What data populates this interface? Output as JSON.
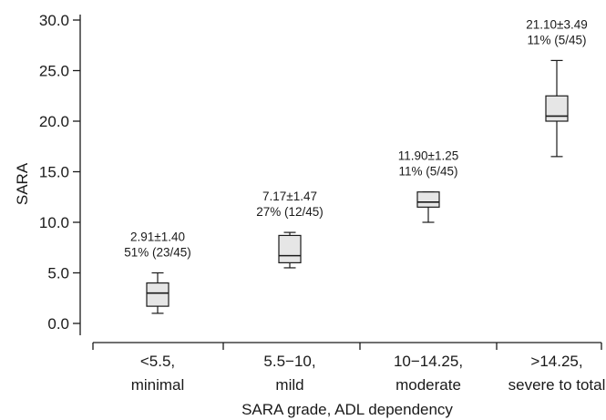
{
  "chart_data": {
    "type": "box",
    "ylabel": "SARA",
    "xlabel": "SARA grade, ADL dependency",
    "ylim": [
      0,
      30
    ],
    "yticks": [
      {
        "value": 0,
        "label": "0.0"
      },
      {
        "value": 5,
        "label": "5.0"
      },
      {
        "value": 10,
        "label": "10.0"
      },
      {
        "value": 15,
        "label": "15.0"
      },
      {
        "value": 20,
        "label": "20.0"
      },
      {
        "value": 25,
        "label": "25.0"
      },
      {
        "value": 30,
        "label": "30.0"
      }
    ],
    "categories": [
      {
        "line1": "<5.5,",
        "line2": "minimal"
      },
      {
        "line1": "5.5−10,",
        "line2": "mild"
      },
      {
        "line1": "10−14.25,",
        "line2": "moderate"
      },
      {
        "line1": ">14.25,",
        "line2": "severe to total"
      }
    ],
    "boxes": [
      {
        "min": 1.0,
        "q1": 1.7,
        "median": 3.0,
        "q3": 4.0,
        "max": 5.0,
        "annotation_line1": "2.91±1.40",
        "annotation_line2": "51% (23/45)"
      },
      {
        "min": 5.5,
        "q1": 6.0,
        "median": 6.7,
        "q3": 8.7,
        "max": 9.0,
        "annotation_line1": "7.17±1.47",
        "annotation_line2": "27% (12/45)"
      },
      {
        "min": 10.0,
        "q1": 11.5,
        "median": 12.0,
        "q3": 13.0,
        "max": 13.0,
        "annotation_line1": "11.90±1.25",
        "annotation_line2": "11% (5/45)"
      },
      {
        "min": 16.5,
        "q1": 20.0,
        "median": 20.5,
        "q3": 22.5,
        "max": 26.0,
        "annotation_line1": "21.10±3.49",
        "annotation_line2": "11% (5/45)"
      }
    ],
    "grid": false,
    "legend": "none",
    "box_fill": "#e6e6e6",
    "line_color": "#1a1a1a"
  }
}
